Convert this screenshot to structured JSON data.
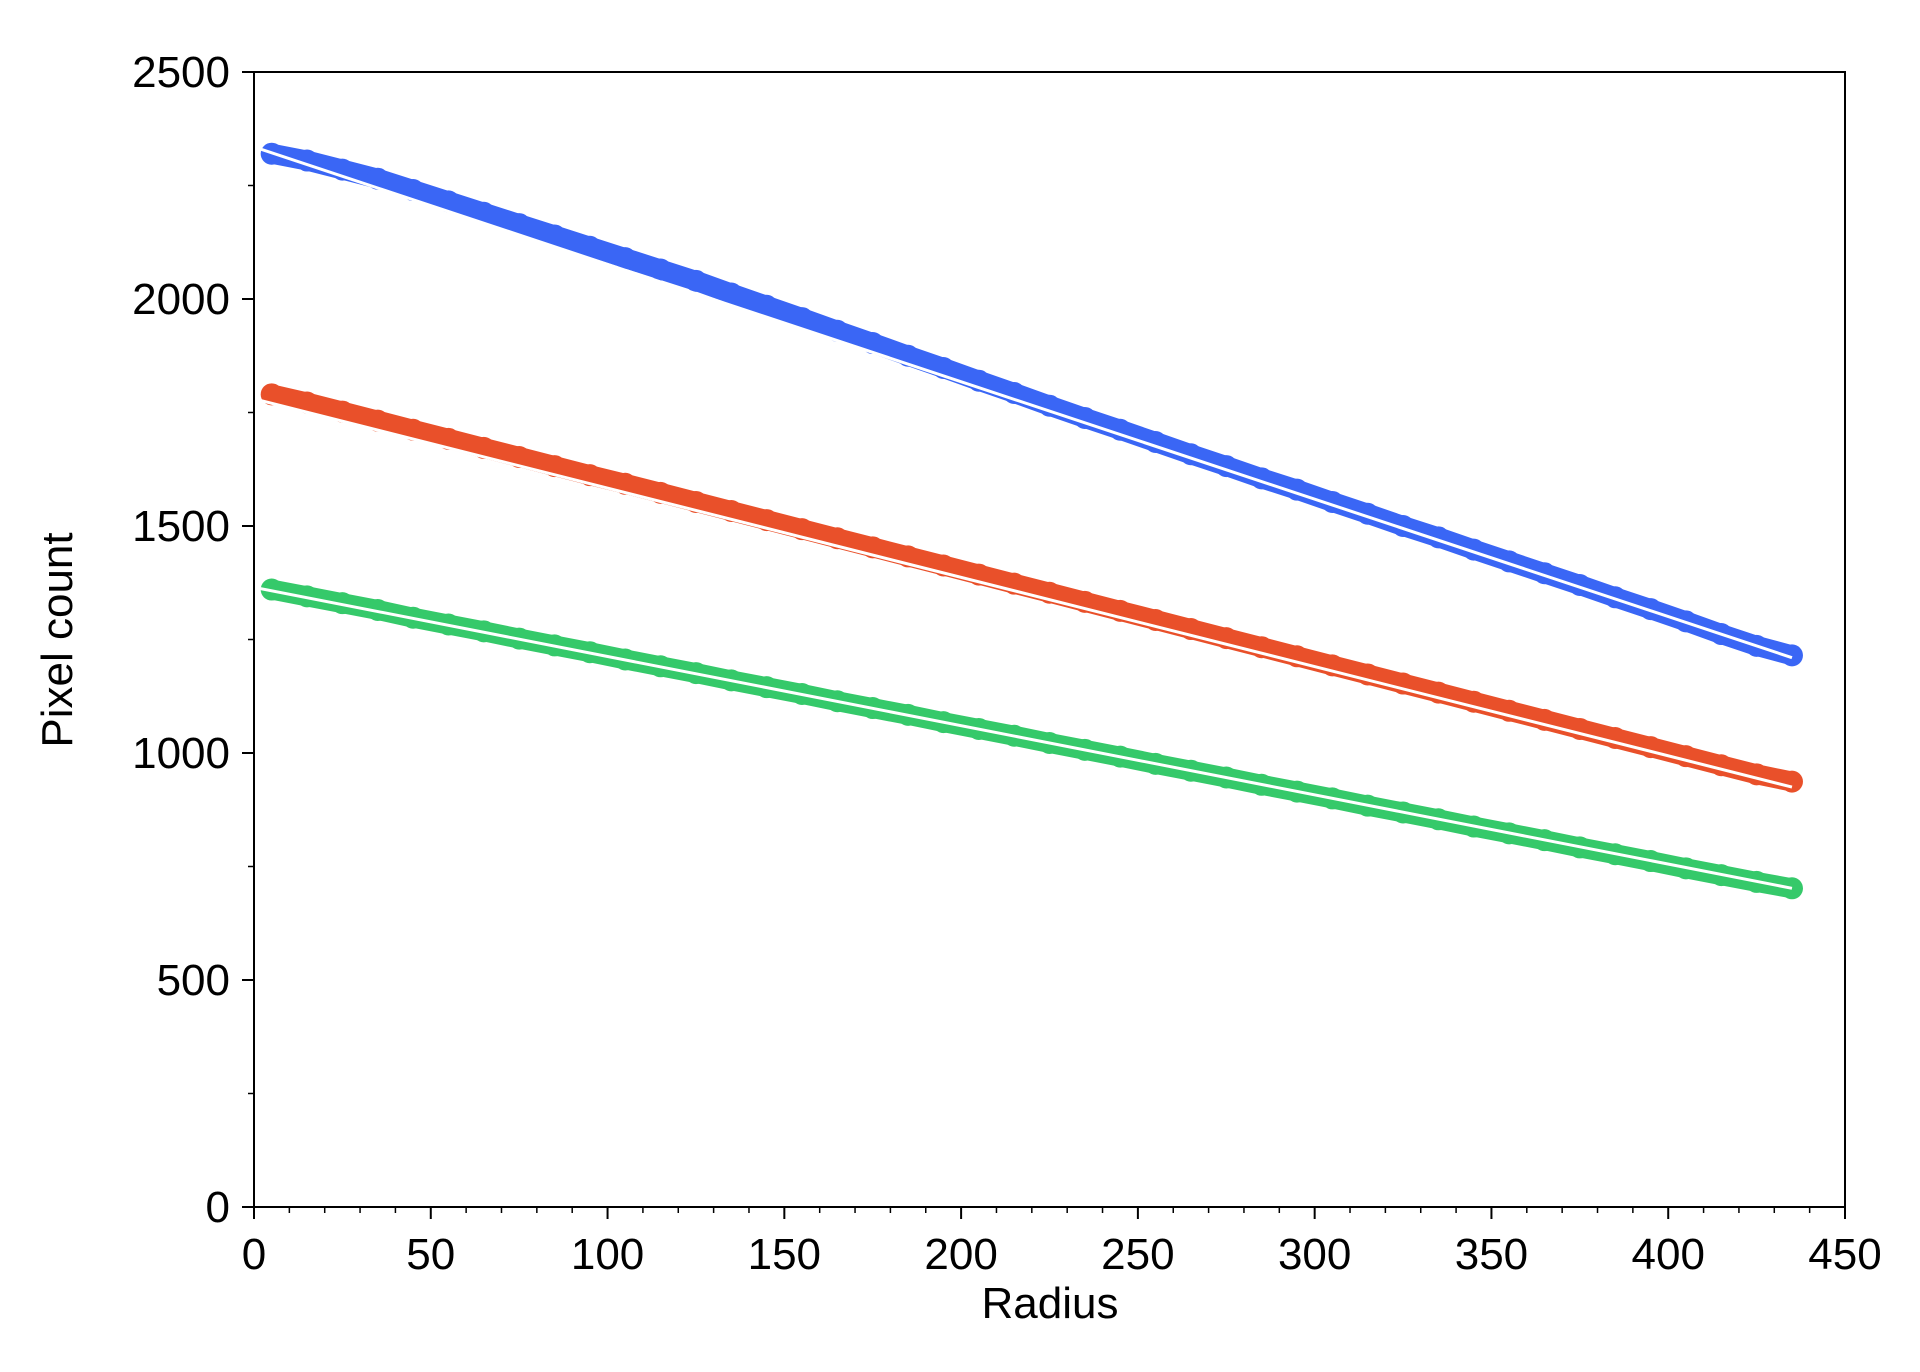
{
  "chart_data": {
    "type": "scatter",
    "xlabel": "Radius",
    "ylabel": "Pixel count",
    "xlim": [
      0,
      450
    ],
    "ylim": [
      0,
      2500
    ],
    "xticks": [
      0,
      50,
      100,
      150,
      200,
      250,
      300,
      350,
      400,
      450
    ],
    "yticks": [
      0,
      500,
      1000,
      1500,
      2000,
      2500
    ],
    "xminorticks": [
      10,
      20,
      30,
      40,
      60,
      70,
      80,
      90,
      110,
      120,
      130,
      140,
      160,
      170,
      180,
      190,
      210,
      220,
      230,
      240,
      260,
      270,
      280,
      290,
      310,
      320,
      330,
      340,
      360,
      370,
      380,
      390,
      410,
      420,
      430,
      440
    ],
    "yminorticks": [
      250,
      750,
      1250,
      1750,
      2250
    ],
    "grid": false,
    "series": [
      {
        "type": "scatter",
        "color": "#3a66f5",
        "x": [
          5,
          15,
          25,
          35,
          45,
          55,
          65,
          75,
          85,
          95,
          105,
          115,
          125,
          135,
          145,
          155,
          165,
          175,
          185,
          195,
          205,
          215,
          225,
          235,
          245,
          255,
          265,
          275,
          285,
          295,
          305,
          315,
          325,
          335,
          345,
          355,
          365,
          375,
          385,
          395,
          405,
          415,
          425,
          435
        ],
        "values": [
          2320,
          2305,
          2285,
          2265,
          2240,
          2215,
          2190,
          2165,
          2140,
          2115,
          2090,
          2065,
          2040,
          2012,
          1985,
          1958,
          1930,
          1903,
          1875,
          1848,
          1820,
          1793,
          1765,
          1738,
          1712,
          1685,
          1658,
          1632,
          1605,
          1580,
          1553,
          1527,
          1500,
          1475,
          1448,
          1422,
          1396,
          1370,
          1343,
          1317,
          1290,
          1262,
          1236,
          1215
        ]
      },
      {
        "type": "scatter",
        "color": "#e9502a",
        "x": [
          5,
          15,
          25,
          35,
          45,
          55,
          65,
          75,
          85,
          95,
          105,
          115,
          125,
          135,
          145,
          155,
          165,
          175,
          185,
          195,
          205,
          215,
          225,
          235,
          245,
          255,
          265,
          275,
          285,
          295,
          305,
          315,
          325,
          335,
          345,
          355,
          365,
          375,
          385,
          395,
          405,
          415,
          425,
          435
        ],
        "values": [
          1790,
          1772,
          1752,
          1732,
          1712,
          1692,
          1672,
          1652,
          1632,
          1612,
          1593,
          1573,
          1553,
          1533,
          1513,
          1493,
          1473,
          1453,
          1433,
          1413,
          1393,
          1373,
          1353,
          1333,
          1313,
          1293,
          1273,
          1253,
          1233,
          1213,
          1193,
          1173,
          1153,
          1133,
          1113,
          1093,
          1073,
          1053,
          1033,
          1013,
          993,
          973,
          953,
          937
        ]
      },
      {
        "type": "scatter",
        "color": "#35c96a",
        "x": [
          5,
          15,
          25,
          35,
          45,
          55,
          65,
          75,
          85,
          95,
          105,
          115,
          125,
          135,
          145,
          155,
          165,
          175,
          185,
          195,
          205,
          215,
          225,
          235,
          245,
          255,
          265,
          275,
          285,
          295,
          305,
          315,
          325,
          335,
          345,
          355,
          365,
          375,
          385,
          395,
          405,
          415,
          425,
          435
        ],
        "values": [
          1360,
          1345,
          1330,
          1315,
          1298,
          1283,
          1268,
          1252,
          1237,
          1222,
          1206,
          1191,
          1176,
          1160,
          1145,
          1130,
          1114,
          1099,
          1084,
          1068,
          1053,
          1038,
          1022,
          1007,
          992,
          976,
          961,
          946,
          930,
          915,
          900,
          884,
          869,
          854,
          838,
          823,
          808,
          792,
          777,
          762,
          746,
          731,
          716,
          702
        ]
      },
      {
        "type": "line",
        "color": "#ffffff",
        "x": [
          0,
          435
        ],
        "values": [
          2335,
          1210
        ]
      },
      {
        "type": "line",
        "color": "#ffffff",
        "x": [
          0,
          435
        ],
        "values": [
          1780,
          925
        ]
      },
      {
        "type": "line",
        "color": "#ffffff",
        "x": [
          0,
          435
        ],
        "values": [
          1365,
          702
        ]
      }
    ]
  }
}
